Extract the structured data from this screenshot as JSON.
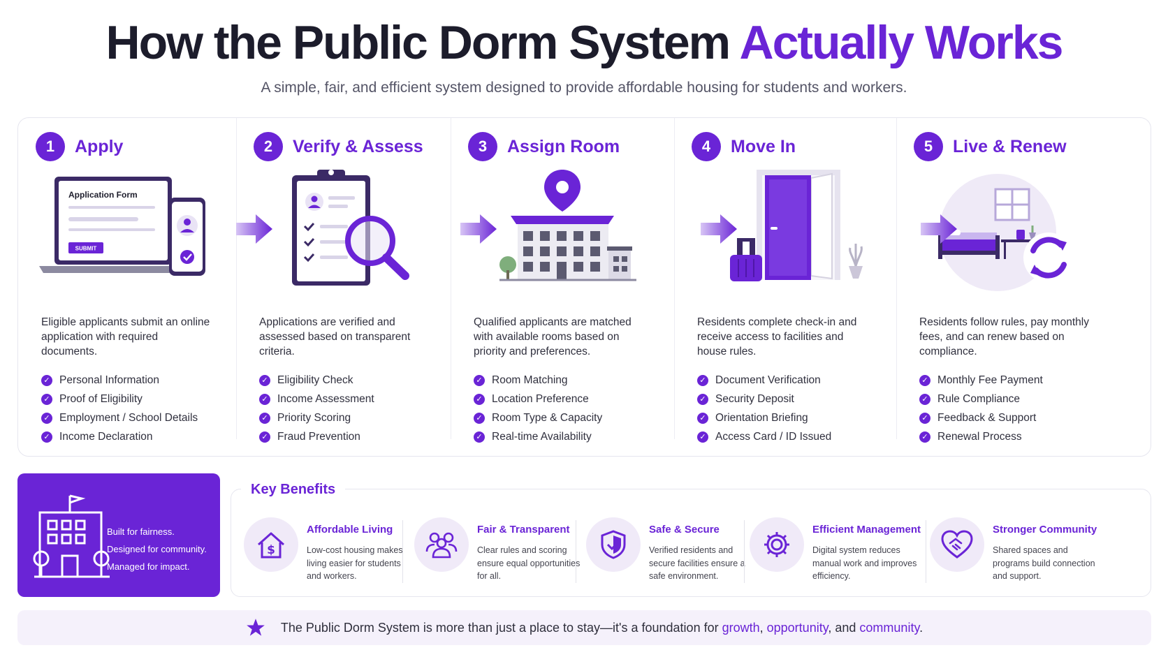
{
  "header": {
    "title_main": "How the Public Dorm System ",
    "title_accent": "Actually Works",
    "subtitle": "A simple, fair, and efficient system designed to provide affordable housing for students and workers."
  },
  "steps": [
    {
      "num": "1",
      "title": "Apply",
      "desc": "Eligible applicants submit an online application with required documents.",
      "items": [
        "Personal Information",
        "Proof of Eligibility",
        "Employment / School Details",
        "Income Declaration"
      ],
      "form_title": "Application Form",
      "form_button": "SUBMIT"
    },
    {
      "num": "2",
      "title": "Verify & Assess",
      "desc": "Applications are verified and assessed based on transparent criteria.",
      "items": [
        "Eligibility Check",
        "Income Assessment",
        "Priority Scoring",
        "Fraud Prevention"
      ]
    },
    {
      "num": "3",
      "title": "Assign Room",
      "desc": "Qualified applicants are matched with available rooms based on priority and preferences.",
      "items": [
        "Room Matching",
        "Location Preference",
        "Room Type & Capacity",
        "Real-time Availability"
      ]
    },
    {
      "num": "4",
      "title": "Move In",
      "desc": "Residents complete check-in and receive access to facilities and house rules.",
      "items": [
        "Document Verification",
        "Security Deposit",
        "Orientation Briefing",
        "Access Card / ID Issued"
      ]
    },
    {
      "num": "5",
      "title": "Live & Renew",
      "desc": "Residents follow rules, pay monthly fees, and can renew based on compliance.",
      "items": [
        "Monthly Fee Payment",
        "Rule Compliance",
        "Feedback & Support",
        "Renewal Process"
      ]
    }
  ],
  "callout": {
    "lines": [
      "Built for fairness.",
      "Designed for community.",
      "Managed for impact."
    ]
  },
  "benefits": {
    "title": "Key Benefits",
    "items": [
      {
        "title": "Affordable Living",
        "text": "Low-cost housing makes living easier for students and workers.",
        "icon": "house-dollar-icon"
      },
      {
        "title": "Fair & Transparent",
        "text": "Clear rules and scoring ensure equal opportunities for all.",
        "icon": "people-group-icon"
      },
      {
        "title": "Safe & Secure",
        "text": "Verified residents and secure facilities ensure a safe environment.",
        "icon": "shield-icon"
      },
      {
        "title": "Efficient Management",
        "text": "Digital system reduces manual work and improves efficiency.",
        "icon": "gear-icon"
      },
      {
        "title": "Stronger Community",
        "text": "Shared spaces and programs build connection and support.",
        "icon": "handshake-heart-icon"
      }
    ]
  },
  "footer": {
    "text_before": "The Public Dorm System is more than just a place to stay—it's a foundation for ",
    "hl1": "growth",
    "sep1": ", ",
    "hl2": "opportunity",
    "sep2": ", and ",
    "hl3": "community",
    "text_after": "."
  },
  "colors": {
    "accent": "#6a24d6",
    "light_accent": "#f0eaf8",
    "dark_text": "#1c1c2b"
  }
}
